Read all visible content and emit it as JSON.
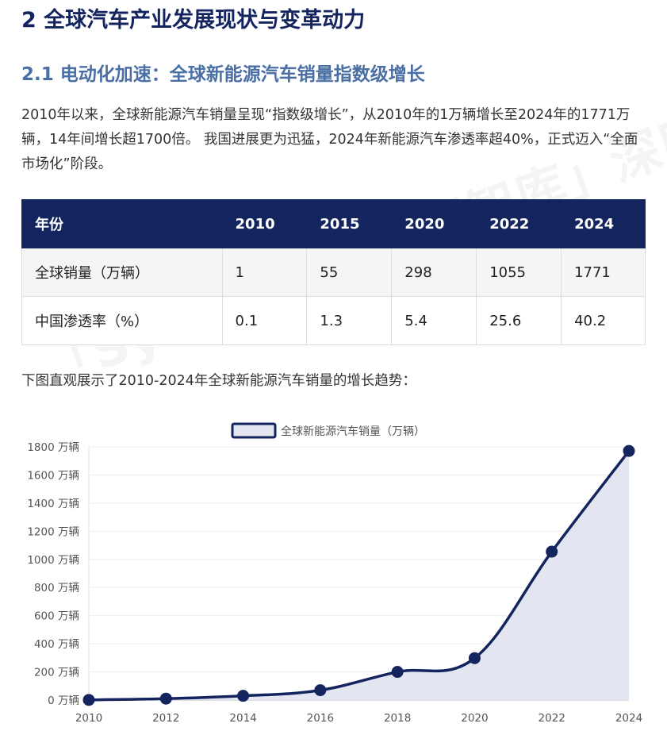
{
  "heading": "2 全球汽车产业发展现状与变革动力",
  "subheading": "2.1 电动化加速：全球新能源汽车销量指数级增长",
  "paragraph": "2010年以来，全球新能源汽车销量呈现“指数级增长”，从2010年的1万辆增长至2024年的1771万辆，14年间增长超1700倍。 我国进展更为迅猛，2024年新能源汽车渗透率超40%，正式迈入“全面市场化”阶段。",
  "table": {
    "headers": [
      "年份",
      "2010",
      "2015",
      "2020",
      "2022",
      "2024"
    ],
    "rows": [
      [
        "全球销量（万辆）",
        "1",
        "55",
        "298",
        "1055",
        "1771"
      ],
      [
        "中国渗透率（%）",
        "0.1",
        "1.3",
        "5.4",
        "25.6",
        "40.2"
      ]
    ]
  },
  "caption": "下图直观展示了2010-2024年全球新能源汽车销量的增长趋势：",
  "watermark": "「SysPro系统工程智库」深度解析",
  "chart_data": {
    "type": "area",
    "legend": "全球新能源汽车销量（万辆）",
    "legend_position": "top-center",
    "x": [
      "2010",
      "2012",
      "2014",
      "2016",
      "2018",
      "2020",
      "2022",
      "2024"
    ],
    "series": [
      {
        "name": "全球新能源汽车销量（万辆）",
        "values": [
          1,
          10,
          30,
          70,
          200,
          298,
          1055,
          1771
        ]
      }
    ],
    "ylim": [
      0,
      1800
    ],
    "yticks": [
      "0 万辆",
      "200 万辆",
      "400 万辆",
      "600 万辆",
      "800 万辆",
      "1000 万辆",
      "1200 万辆",
      "1400 万辆",
      "1600 万辆",
      "1800 万辆"
    ],
    "grid": true,
    "line_color": "#13245f",
    "fill_color": "#e3e6f0"
  }
}
